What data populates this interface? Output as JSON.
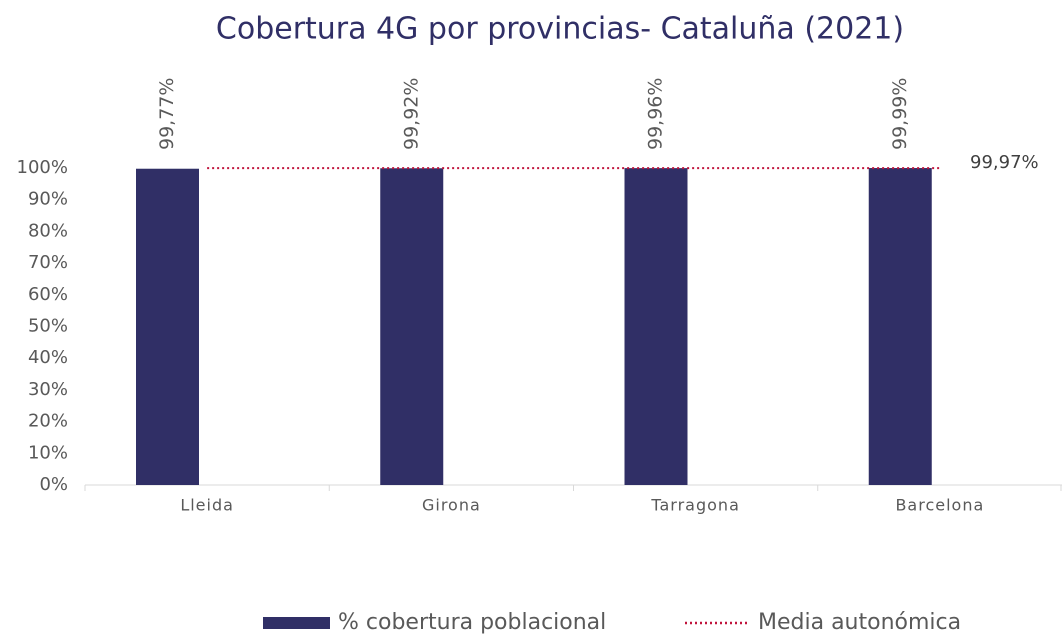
{
  "chart_data": {
    "type": "bar",
    "title": "Cobertura 4G por provincias- Cataluña (2021)",
    "categories": [
      "Lleida",
      "Girona",
      "Tarragona",
      "Barcelona"
    ],
    "series": [
      {
        "name": "% cobertura poblacional",
        "color": "#302f66",
        "values": [
          99.77,
          99.92,
          99.96,
          99.99
        ],
        "value_labels": [
          "99,77%",
          "99,92%",
          "99,96%",
          "99,99%"
        ]
      }
    ],
    "average_line": {
      "name": "Media autonómica",
      "color": "#c0143c",
      "value": 99.97,
      "value_label": "99,97%"
    },
    "ylim": [
      0,
      100
    ],
    "yticks": [
      {
        "value": 0,
        "label": "0%"
      },
      {
        "value": 10,
        "label": "10%"
      },
      {
        "value": 20,
        "label": "20%"
      },
      {
        "value": 30,
        "label": "30%"
      },
      {
        "value": 40,
        "label": "40%"
      },
      {
        "value": 50,
        "label": "50%"
      },
      {
        "value": 60,
        "label": "60%"
      },
      {
        "value": 70,
        "label": "70%"
      },
      {
        "value": 80,
        "label": "80%"
      },
      {
        "value": 90,
        "label": "90%"
      },
      {
        "value": 100,
        "label": "100%"
      }
    ],
    "legend": "bottom"
  }
}
